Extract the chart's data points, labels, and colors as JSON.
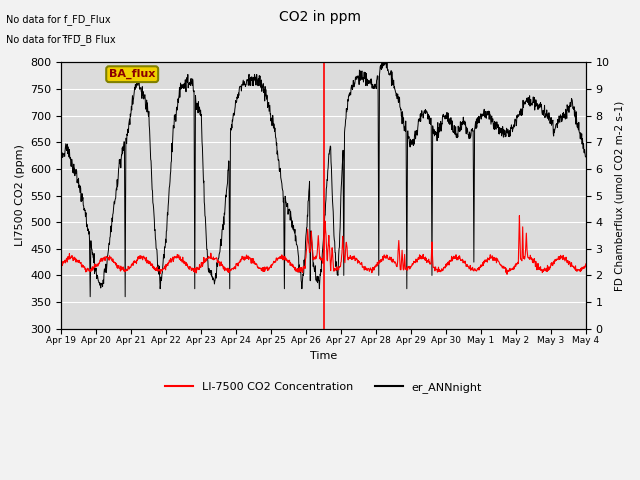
{
  "title": "CO2 in ppm",
  "xlabel": "Time",
  "ylabel_left": "LI7500 CO2 (ppm)",
  "ylabel_right": "FD Chamberflux (umol CO2 m-2 s-1)",
  "ylim_left": [
    300,
    800
  ],
  "ylim_right": [
    0.0,
    10.0
  ],
  "yticks_left": [
    300,
    350,
    400,
    450,
    500,
    550,
    600,
    650,
    700,
    750,
    800
  ],
  "yticks_right": [
    0.0,
    1.0,
    2.0,
    3.0,
    4.0,
    5.0,
    6.0,
    7.0,
    8.0,
    9.0,
    10.0
  ],
  "xtick_labels": [
    "Apr 19",
    "Apr 20",
    "Apr 21",
    "Apr 22",
    "Apr 23",
    "Apr 24",
    "Apr 25",
    "Apr 26",
    "Apr 27",
    "Apr 28",
    "Apr 29",
    "Apr 30",
    "May 1",
    "May 2",
    "May 3",
    "May 4"
  ],
  "vline_x": 7.5,
  "annotation1": "No data for f_FD_Flux",
  "annotation2": "No data for f̅FD̅_B Flux",
  "ba_flux_label": "BA_flux",
  "legend_red_label": "LI-7500 CO2 Concentration",
  "legend_black_label": "er_ANNnight",
  "bg_color": "#e8e8e8",
  "plot_bg_color": "#dcdcdc",
  "red_color": "#ff0000",
  "black_color": "#000000",
  "figsize": [
    6.4,
    4.8
  ],
  "dpi": 100
}
